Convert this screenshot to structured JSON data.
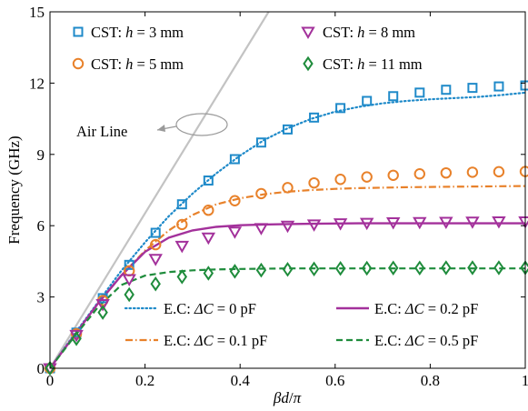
{
  "chart_data": {
    "type": "line",
    "title": "",
    "xlabel": "βd/π",
    "ylabel": "Frequency (GHz)",
    "xlim": [
      0,
      1
    ],
    "ylim": [
      0,
      15
    ],
    "xticks": [
      "0",
      "0.2",
      "0.4",
      "0.6",
      "0.8",
      "1"
    ],
    "yticks": [
      "0",
      "3",
      "6",
      "9",
      "12",
      "15"
    ],
    "grid": false,
    "legend_placement": "top and bottom-right",
    "colors": {
      "blue": "#1f8ac9",
      "orange": "#e8812a",
      "purple": "#a3319b",
      "green": "#1f8c3c",
      "air_line": "#c3c3c3"
    },
    "annotation": "Air Line",
    "air_line": {
      "x": [
        0,
        0.46
      ],
      "y": [
        0,
        15
      ]
    },
    "series": [
      {
        "name": "CST: h = 3 mm",
        "legend_prefix": "CST: ",
        "legend_var": "h",
        "legend_suffix": " = 3 mm",
        "style": "marker",
        "marker": "square",
        "color": "#1f8ac9",
        "x": [
          0,
          0.0556,
          0.1111,
          0.1667,
          0.2222,
          0.2778,
          0.3333,
          0.3889,
          0.4444,
          0.5,
          0.5556,
          0.6111,
          0.6667,
          0.7222,
          0.7778,
          0.8333,
          0.8889,
          0.9444,
          1.0
        ],
        "y": [
          0,
          1.5,
          2.95,
          4.35,
          5.7,
          6.9,
          7.9,
          8.8,
          9.5,
          10.05,
          10.55,
          10.95,
          11.25,
          11.45,
          11.6,
          11.72,
          11.8,
          11.86,
          11.9
        ]
      },
      {
        "name": "CST: h = 5 mm",
        "legend_prefix": "CST: ",
        "legend_var": "h",
        "legend_suffix": " = 5 mm",
        "style": "marker",
        "marker": "circle",
        "color": "#e8812a",
        "x": [
          0,
          0.0556,
          0.1111,
          0.1667,
          0.2222,
          0.2778,
          0.3333,
          0.3889,
          0.4444,
          0.5,
          0.5556,
          0.6111,
          0.6667,
          0.7222,
          0.7778,
          0.8333,
          0.8889,
          0.9444,
          1.0
        ],
        "y": [
          0,
          1.45,
          2.85,
          4.1,
          5.2,
          6.05,
          6.65,
          7.05,
          7.35,
          7.6,
          7.8,
          7.95,
          8.05,
          8.12,
          8.18,
          8.22,
          8.25,
          8.27,
          8.28
        ]
      },
      {
        "name": "CST: h = 8 mm",
        "legend_prefix": "CST: ",
        "legend_var": "h",
        "legend_suffix": " = 8 mm",
        "style": "marker",
        "marker": "triangle-down",
        "color": "#a3319b",
        "x": [
          0,
          0.0556,
          0.1111,
          0.1667,
          0.2222,
          0.2778,
          0.3333,
          0.3889,
          0.4444,
          0.5,
          0.5556,
          0.6111,
          0.6667,
          0.7222,
          0.7778,
          0.8333,
          0.8889,
          0.9444,
          1.0
        ],
        "y": [
          0,
          1.4,
          2.7,
          3.75,
          4.6,
          5.15,
          5.5,
          5.75,
          5.9,
          6.0,
          6.05,
          6.1,
          6.12,
          6.14,
          6.15,
          6.16,
          6.17,
          6.18,
          6.18
        ]
      },
      {
        "name": "CST: h = 11 mm",
        "legend_prefix": "CST: ",
        "legend_var": "h",
        "legend_suffix": " = 11 mm",
        "style": "marker",
        "marker": "diamond",
        "color": "#1f8c3c",
        "x": [
          0,
          0.0556,
          0.1111,
          0.1667,
          0.2222,
          0.2778,
          0.3333,
          0.3889,
          0.4444,
          0.5,
          0.5556,
          0.6111,
          0.6667,
          0.7222,
          0.7778,
          0.8333,
          0.8889,
          0.9444,
          1.0
        ],
        "y": [
          0,
          1.25,
          2.35,
          3.1,
          3.55,
          3.85,
          4.0,
          4.08,
          4.13,
          4.16,
          4.18,
          4.2,
          4.21,
          4.22,
          4.22,
          4.23,
          4.23,
          4.23,
          4.23
        ]
      },
      {
        "name": "E.C: ΔC = 0 pF",
        "legend_prefix": "E.C: ",
        "legend_var": "ΔC",
        "legend_suffix": " = 0 pF",
        "style": "dotted",
        "color": "#1f8ac9",
        "x": [
          0,
          0.05,
          0.1,
          0.15,
          0.2,
          0.25,
          0.3,
          0.35,
          0.4,
          0.45,
          0.5,
          0.55,
          0.6,
          0.65,
          0.7,
          0.75,
          0.8,
          0.85,
          0.9,
          0.95,
          1.0
        ],
        "y": [
          0,
          1.4,
          2.75,
          4.1,
          5.3,
          6.4,
          7.35,
          8.2,
          8.95,
          9.6,
          10.1,
          10.5,
          10.8,
          11.0,
          11.15,
          11.25,
          11.32,
          11.37,
          11.42,
          11.5,
          11.6
        ]
      },
      {
        "name": "E.C: ΔC = 0.1 pF",
        "legend_prefix": "E.C: ",
        "legend_var": "ΔC",
        "legend_suffix": " = 0.1 pF",
        "style": "dashdot",
        "color": "#e8812a",
        "x": [
          0,
          0.05,
          0.1,
          0.15,
          0.2,
          0.25,
          0.3,
          0.35,
          0.4,
          0.45,
          0.5,
          0.55,
          0.6,
          0.65,
          0.7,
          0.75,
          0.8,
          0.85,
          0.9,
          0.95,
          1.0
        ],
        "y": [
          0,
          1.35,
          2.7,
          3.9,
          4.95,
          5.8,
          6.45,
          6.9,
          7.15,
          7.32,
          7.43,
          7.5,
          7.55,
          7.58,
          7.6,
          7.62,
          7.63,
          7.64,
          7.65,
          7.66,
          7.67
        ]
      },
      {
        "name": "E.C: ΔC = 0.2 pF",
        "legend_prefix": "E.C: ",
        "legend_var": "ΔC",
        "legend_suffix": " = 0.2 pF",
        "style": "solid",
        "color": "#a3319b",
        "x": [
          0,
          0.05,
          0.1,
          0.15,
          0.2,
          0.25,
          0.3,
          0.35,
          0.4,
          0.45,
          0.5,
          0.55,
          0.6,
          0.65,
          0.7,
          0.75,
          0.8,
          0.85,
          0.9,
          0.95,
          1.0
        ],
        "y": [
          0,
          1.35,
          2.7,
          3.9,
          4.9,
          5.5,
          5.8,
          5.95,
          6.02,
          6.05,
          6.07,
          6.08,
          6.09,
          6.1,
          6.1,
          6.1,
          6.1,
          6.1,
          6.1,
          6.1,
          6.1
        ]
      },
      {
        "name": "E.C: ΔC = 0.5 pF",
        "legend_prefix": "E.C: ",
        "legend_var": "ΔC",
        "legend_suffix": " = 0.5 pF",
        "style": "dashed",
        "color": "#1f8c3c",
        "x": [
          0,
          0.05,
          0.1,
          0.15,
          0.2,
          0.25,
          0.3,
          0.35,
          0.4,
          0.45,
          0.5,
          0.55,
          0.6,
          0.65,
          0.7,
          0.75,
          0.8,
          0.85,
          0.9,
          0.95,
          1.0
        ],
        "y": [
          0,
          1.3,
          2.55,
          3.5,
          3.9,
          4.05,
          4.12,
          4.16,
          4.18,
          4.19,
          4.2,
          4.2,
          4.2,
          4.2,
          4.2,
          4.2,
          4.2,
          4.2,
          4.2,
          4.2,
          4.2
        ]
      }
    ]
  }
}
